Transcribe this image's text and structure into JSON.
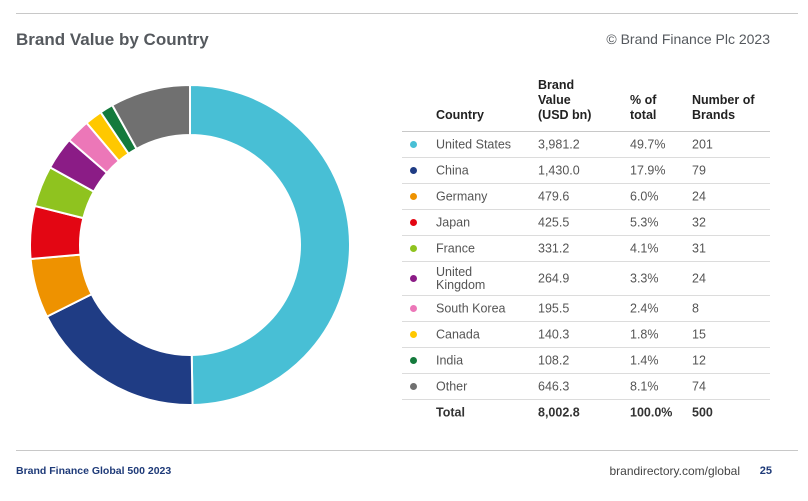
{
  "header": {
    "title": "Brand Value by Country",
    "copyright": "© Brand Finance Plc 2023"
  },
  "footer": {
    "publication": "Brand Finance Global 500 2023",
    "website": "brandirectory.com/global",
    "page_number": "25"
  },
  "chart_data": {
    "type": "pie",
    "style": "donut",
    "columns": [
      "Country",
      "Brand\nValue\n(USD bn)",
      "% of\ntotal",
      "Number of\nBrands"
    ],
    "rows": [
      {
        "country": "United States",
        "value": "3,981.2",
        "pct": "49.7%",
        "brands": "201",
        "color": "#48bfd5"
      },
      {
        "country": "China",
        "value": "1,430.0",
        "pct": "17.9%",
        "brands": "79",
        "color": "#1f3c84"
      },
      {
        "country": "Germany",
        "value": "479.6",
        "pct": "6.0%",
        "brands": "24",
        "color": "#ee9200"
      },
      {
        "country": "Japan",
        "value": "425.5",
        "pct": "5.3%",
        "brands": "32",
        "color": "#e30613"
      },
      {
        "country": "France",
        "value": "331.2",
        "pct": "4.1%",
        "brands": "31",
        "color": "#8fc31f"
      },
      {
        "country": "United\nKingdom",
        "value": "264.9",
        "pct": "3.3%",
        "brands": "24",
        "color": "#8b1c86"
      },
      {
        "country": "South Korea",
        "value": "195.5",
        "pct": "2.4%",
        "brands": "8",
        "color": "#ec77b8"
      },
      {
        "country": "Canada",
        "value": "140.3",
        "pct": "1.8%",
        "brands": "15",
        "color": "#ffc800"
      },
      {
        "country": "India",
        "value": "108.2",
        "pct": "1.4%",
        "brands": "12",
        "color": "#147a3c"
      },
      {
        "country": "Other",
        "value": "646.3",
        "pct": "8.1%",
        "brands": "74",
        "color": "#707070"
      }
    ],
    "total": {
      "label": "Total",
      "value": "8,002.8",
      "pct": "100.0%",
      "brands": "500"
    }
  }
}
